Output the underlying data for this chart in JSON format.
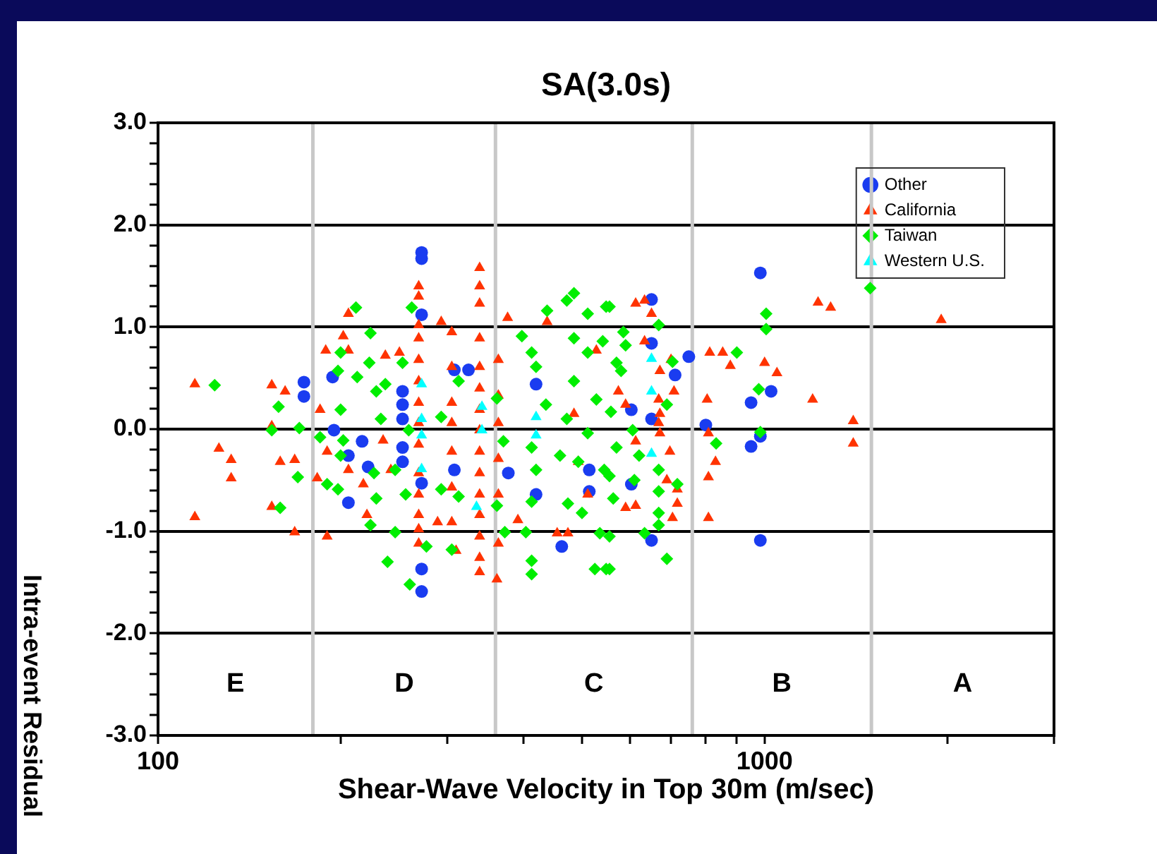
{
  "chart_data": {
    "type": "scatter",
    "title": "SA(3.0s)",
    "xlabel": "Shear-Wave Velocity in Top 30m (m/sec)",
    "ylabel": "Intra-event Residual",
    "log": "x",
    "grid": "y",
    "legend": "top right",
    "xlim": [
      100,
      3000
    ],
    "xticks": [
      100,
      {
        "value": 200,
        "label": null
      },
      {
        "value": 300,
        "label": null
      },
      {
        "value": 400,
        "label": null
      },
      {
        "value": 500,
        "label": null
      },
      {
        "value": 600,
        "label": null
      },
      {
        "value": 700,
        "label": null
      },
      {
        "value": 800,
        "label": null
      },
      {
        "value": 900,
        "label": null
      },
      1000,
      {
        "value": 2000,
        "label": null
      },
      {
        "value": 3000,
        "label": null
      }
    ],
    "ylim": [
      -3,
      3
    ],
    "yticks": [
      {
        "value": -3,
        "label": "-3.0"
      },
      {
        "value": -2.8,
        "label": null
      },
      {
        "value": -2.6,
        "label": null
      },
      {
        "value": -2.4,
        "label": null
      },
      {
        "value": -2.2,
        "label": null
      },
      {
        "value": -2,
        "label": "-2.0"
      },
      {
        "value": -1.8,
        "label": null
      },
      {
        "value": -1.6,
        "label": null
      },
      {
        "value": -1.4,
        "label": null
      },
      {
        "value": -1.2,
        "label": null
      },
      {
        "value": -1,
        "label": "-1.0"
      },
      {
        "value": -0.8,
        "label": null
      },
      {
        "value": -0.6,
        "label": null
      },
      {
        "value": -0.4,
        "label": null
      },
      {
        "value": -0.2,
        "label": null
      },
      {
        "value": 0,
        "label": "0.0"
      },
      {
        "value": 0.2,
        "label": null
      },
      {
        "value": 0.4,
        "label": null
      },
      {
        "value": 0.6,
        "label": null
      },
      {
        "value": 0.8,
        "label": null
      },
      {
        "value": 1,
        "label": "1.0"
      },
      {
        "value": 1.2,
        "label": null
      },
      {
        "value": 1.4,
        "label": null
      },
      {
        "value": 1.6,
        "label": null
      },
      {
        "value": 1.8,
        "label": null
      },
      {
        "value": 2,
        "label": "2.0"
      },
      {
        "value": 2.2,
        "label": null
      },
      {
        "value": 2.4,
        "label": null
      },
      {
        "value": 2.6,
        "label": null
      },
      {
        "value": 2.8,
        "label": null
      },
      {
        "value": 3,
        "label": "3.0"
      }
    ],
    "ref_lines": [
      {
        "axis": "x",
        "value": 180,
        "color": "#c8c8c8"
      },
      {
        "axis": "x",
        "value": 360,
        "color": "#c8c8c8"
      },
      {
        "axis": "x",
        "value": 760,
        "color": "#c8c8c8"
      },
      {
        "axis": "x",
        "value": 1500,
        "color": "#c8c8c8"
      }
    ],
    "annotations": [
      "E",
      "D",
      "C",
      "B",
      "A"
    ],
    "series": [
      {
        "name": "Other",
        "color": "#1a3cf0",
        "marker": "circle",
        "x": [
          174,
          174,
          194,
          195,
          217,
          206,
          206,
          222,
          272,
          272,
          272,
          253,
          253,
          253,
          253,
          253,
          272,
          272,
          272,
          308,
          325,
          308,
          378,
          420,
          420,
          463,
          514,
          514,
          651,
          651,
          712,
          651,
          603,
          603,
          651,
          750,
          800,
          950,
          1025,
          950,
          984,
          984,
          984
        ],
        "values": [
          0.46,
          0.32,
          0.51,
          -0.01,
          -0.12,
          -0.26,
          -0.72,
          -0.37,
          1.73,
          1.67,
          1.12,
          0.37,
          0.24,
          0.1,
          -0.18,
          -0.32,
          -0.53,
          -1.37,
          -1.59,
          0.58,
          0.58,
          -0.4,
          -0.43,
          0.44,
          -0.64,
          -1.15,
          -0.4,
          -0.61,
          1.27,
          0.84,
          0.53,
          0.1,
          0.19,
          -0.54,
          -1.09,
          0.71,
          0.04,
          0.26,
          0.37,
          -0.17,
          -0.07,
          1.53,
          -1.09
        ]
      },
      {
        "name": "California",
        "color": "#ff3300",
        "marker": "triangle",
        "x": [
          115,
          126,
          132,
          132,
          115,
          154,
          162,
          154,
          159,
          168,
          154,
          168,
          190,
          183,
          206,
          202,
          189,
          206,
          185,
          190,
          206,
          218,
          221,
          237,
          235,
          269,
          269,
          269,
          269,
          269,
          269,
          269,
          269,
          269,
          269,
          269,
          269,
          269,
          269,
          339,
          339,
          339,
          339,
          339,
          339,
          339,
          339,
          339,
          339,
          339,
          339,
          339,
          339,
          339,
          362,
          305,
          305,
          305,
          305,
          305,
          305,
          305,
          364,
          364,
          364,
          364,
          364,
          364,
          293,
          377,
          438,
          392,
          455,
          474,
          511,
          528,
          250,
          242,
          310,
          289,
          485,
          493,
          613,
          634,
          651,
          634,
          701,
          672,
          709,
          669,
          672,
          669,
          672,
          698,
          690,
          718,
          718,
          705,
          613,
          590,
          613,
          590,
          574,
          812,
          853,
          878,
          804,
          808,
          830,
          808,
          808,
          1000,
          1048,
          1200,
          1225,
          1285,
          1955,
          1400,
          1400
        ],
        "values": [
          0.44,
          -0.19,
          -0.3,
          -0.48,
          -0.86,
          0.43,
          0.37,
          0.03,
          -0.32,
          -0.3,
          -0.76,
          -1.01,
          -1.05,
          -0.48,
          1.13,
          0.91,
          0.77,
          0.77,
          0.19,
          -0.22,
          -0.4,
          -0.54,
          -0.84,
          0.72,
          -0.11,
          1.4,
          1.3,
          1.02,
          0.89,
          0.68,
          0.47,
          0.26,
          0.06,
          -0.15,
          -0.43,
          -0.64,
          -0.84,
          -0.98,
          -1.12,
          1.58,
          1.4,
          1.23,
          0.89,
          0.61,
          0.4,
          0.19,
          -0.01,
          -0.22,
          -0.43,
          -0.64,
          -0.84,
          -1.05,
          -1.26,
          -1.4,
          -1.47,
          0.95,
          0.61,
          0.26,
          0.06,
          -0.22,
          -0.57,
          -0.91,
          0.68,
          0.33,
          0.06,
          -0.29,
          -0.64,
          -1.12,
          1.05,
          1.09,
          1.05,
          -0.89,
          -1.02,
          -1.02,
          -0.64,
          0.77,
          0.75,
          -0.4,
          -1.19,
          -0.91,
          0.15,
          -0.32,
          1.23,
          1.26,
          1.13,
          0.86,
          0.68,
          0.57,
          0.37,
          0.29,
          0.15,
          0.06,
          -0.04,
          -0.22,
          -0.5,
          -0.59,
          -0.73,
          -0.87,
          -0.75,
          -0.77,
          -0.12,
          0.24,
          0.37,
          0.75,
          0.75,
          0.62,
          0.29,
          -0.04,
          -0.32,
          -0.47,
          -0.87,
          0.65,
          0.55,
          0.29,
          1.24,
          1.19,
          1.07,
          0.08,
          -0.14
        ]
      },
      {
        "name": "Taiwan",
        "color": "#00ee00",
        "marker": "diamond",
        "x": [
          124,
          212,
          224,
          158,
          154,
          171,
          170,
          159,
          190,
          200,
          198,
          200,
          202,
          200,
          198,
          213,
          223,
          229,
          233,
          227,
          229,
          224,
          239,
          185,
          262,
          253,
          237,
          259,
          246,
          256,
          246,
          260,
          277,
          293,
          313,
          293,
          313,
          305,
          362,
          371,
          362,
          373,
          398,
          413,
          420,
          438,
          436,
          413,
          420,
          413,
          404,
          413,
          413,
          472,
          485,
          511,
          548,
          485,
          541,
          511,
          485,
          528,
          472,
          511,
          460,
          493,
          544,
          474,
          500,
          535,
          525,
          548,
          570,
          555,
          585,
          669,
          590,
          580,
          558,
          606,
          570,
          621,
          555,
          610,
          563,
          669,
          669,
          718,
          669,
          669,
          634,
          690,
          555,
          555,
          705,
          690,
          900,
          1006,
          1006,
          978,
          984,
          832,
          1493
        ],
        "values": [
          0.43,
          1.19,
          0.94,
          0.22,
          -0.01,
          0.01,
          -0.47,
          -0.77,
          -0.54,
          0.75,
          0.57,
          0.19,
          -0.11,
          -0.26,
          -0.59,
          0.51,
          0.65,
          0.37,
          0.1,
          -0.43,
          -0.68,
          -0.94,
          -1.3,
          -0.08,
          1.19,
          0.65,
          0.44,
          -0.01,
          -0.4,
          -0.64,
          -1.01,
          -1.52,
          -1.15,
          0.12,
          0.47,
          -0.59,
          -0.66,
          -1.18,
          0.3,
          -0.12,
          -0.75,
          -1.01,
          0.91,
          0.75,
          0.61,
          1.16,
          0.24,
          -0.18,
          -0.4,
          -0.71,
          -1.01,
          -1.29,
          -1.42,
          1.26,
          1.33,
          1.13,
          1.2,
          0.89,
          0.86,
          0.75,
          0.47,
          0.29,
          0.1,
          -0.04,
          -0.26,
          -0.32,
          -0.4,
          -0.73,
          -0.82,
          -1.02,
          -1.37,
          -1.37,
          0.65,
          1.2,
          0.95,
          1.02,
          0.82,
          0.57,
          0.17,
          -0.01,
          -0.18,
          -0.26,
          -0.46,
          -0.5,
          -0.68,
          -0.4,
          -0.61,
          -0.54,
          -0.82,
          -0.94,
          -1.02,
          -1.27,
          -1.05,
          -1.37,
          0.66,
          0.24,
          0.75,
          1.13,
          0.98,
          0.39,
          -0.03,
          -0.14,
          1.38
        ]
      },
      {
        "name": "Western U.S.",
        "color": "#00ffff",
        "marker": "triangle",
        "x": [
          272,
          272,
          272,
          272,
          342,
          342,
          335,
          420,
          420,
          651,
          651,
          651
        ],
        "values": [
          0.44,
          0.1,
          -0.06,
          -0.39,
          0.22,
          -0.01,
          -0.76,
          0.12,
          -0.06,
          0.69,
          0.37,
          -0.24
        ]
      }
    ]
  }
}
